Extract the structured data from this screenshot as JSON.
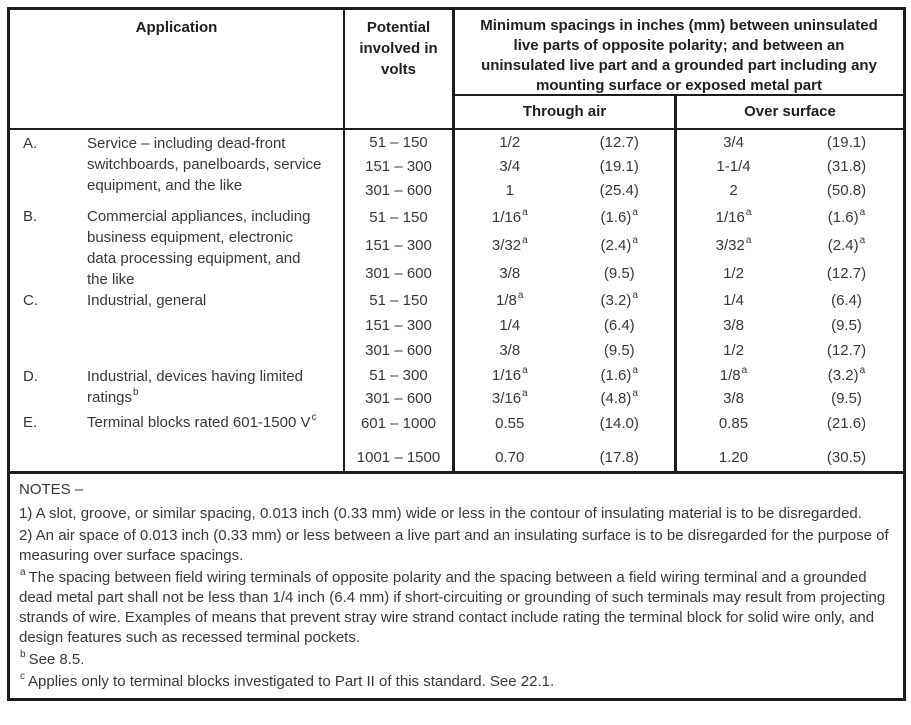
{
  "table": {
    "header": {
      "application": "Application",
      "potential": "Potential\ninvolved in\nvolts",
      "spacings": "Minimum spacings in inches (mm) between uninsulated\nlive parts of opposite polarity; and between an\nuninsulated live part and a grounded part including any\nmounting surface or exposed metal part",
      "through_air": "Through air",
      "over_surface": "Over surface"
    },
    "rows": [
      {
        "id": "a",
        "letter": "A.",
        "description": "Service – including dead-front\nswitchboards, panelboards, service\nequipment, and the like",
        "description_sup": "",
        "bands": [
          {
            "volts": "51 – 150",
            "air_in": "1/2",
            "air_in_sup": "",
            "air_mm": "(12.7)",
            "air_mm_sup": "",
            "surf_in": "3/4",
            "surf_in_sup": "",
            "surf_mm": "(19.1)",
            "surf_mm_sup": ""
          },
          {
            "volts": "151 – 300",
            "air_in": "3/4",
            "air_in_sup": "",
            "air_mm": "(19.1)",
            "air_mm_sup": "",
            "surf_in": "1-1/4",
            "surf_in_sup": "",
            "surf_mm": "(31.8)",
            "surf_mm_sup": ""
          },
          {
            "volts": "301 – 600",
            "air_in": "1",
            "air_in_sup": "",
            "air_mm": "(25.4)",
            "air_mm_sup": "",
            "surf_in": "2",
            "surf_in_sup": "",
            "surf_mm": "(50.8)",
            "surf_mm_sup": ""
          }
        ]
      },
      {
        "id": "b",
        "letter": "B.",
        "description": "Commercial appliances, including\nbusiness equipment, electronic\ndata processing equipment, and\nthe like",
        "description_sup": "",
        "bands": [
          {
            "volts": "51 – 150",
            "air_in": "1/16",
            "air_in_sup": "a",
            "air_mm": "(1.6)",
            "air_mm_sup": "a",
            "surf_in": "1/16",
            "surf_in_sup": "a",
            "surf_mm": "(1.6)",
            "surf_mm_sup": "a"
          },
          {
            "volts": "151 – 300",
            "air_in": "3/32",
            "air_in_sup": "a",
            "air_mm": "(2.4)",
            "air_mm_sup": "a",
            "surf_in": "3/32",
            "surf_in_sup": "a",
            "surf_mm": "(2.4)",
            "surf_mm_sup": "a"
          },
          {
            "volts": "301 – 600",
            "air_in": "3/8",
            "air_in_sup": "",
            "air_mm": "(9.5)",
            "air_mm_sup": "",
            "surf_in": "1/2",
            "surf_in_sup": "",
            "surf_mm": "(12.7)",
            "surf_mm_sup": ""
          }
        ]
      },
      {
        "id": "c",
        "letter": "C.",
        "description": "Industrial, general",
        "description_sup": "",
        "bands": [
          {
            "volts": "51 – 150",
            "air_in": "1/8",
            "air_in_sup": "a",
            "air_mm": "(3.2)",
            "air_mm_sup": "a",
            "surf_in": "1/4",
            "surf_in_sup": "",
            "surf_mm": "(6.4)",
            "surf_mm_sup": ""
          },
          {
            "volts": "151 – 300",
            "air_in": "1/4",
            "air_in_sup": "",
            "air_mm": "(6.4)",
            "air_mm_sup": "",
            "surf_in": "3/8",
            "surf_in_sup": "",
            "surf_mm": "(9.5)",
            "surf_mm_sup": ""
          },
          {
            "volts": "301 – 600",
            "air_in": "3/8",
            "air_in_sup": "",
            "air_mm": "(9.5)",
            "air_mm_sup": "",
            "surf_in": "1/2",
            "surf_in_sup": "",
            "surf_mm": "(12.7)",
            "surf_mm_sup": ""
          }
        ]
      },
      {
        "id": "d",
        "letter": "D.",
        "description": "Industrial, devices having limited\nratings",
        "description_sup": "b",
        "bands": [
          {
            "volts": "51 – 300",
            "air_in": "1/16",
            "air_in_sup": "a",
            "air_mm": "(1.6)",
            "air_mm_sup": "a",
            "surf_in": "1/8",
            "surf_in_sup": "a",
            "surf_mm": "(3.2)",
            "surf_mm_sup": "a"
          },
          {
            "volts": "301 – 600",
            "air_in": "3/16",
            "air_in_sup": "a",
            "air_mm": "(4.8)",
            "air_mm_sup": "a",
            "surf_in": "3/8",
            "surf_in_sup": "",
            "surf_mm": "(9.5)",
            "surf_mm_sup": ""
          }
        ]
      },
      {
        "id": "e",
        "letter": "E.",
        "description": "Terminal blocks rated 601-1500 V",
        "description_sup": "c",
        "bands": [
          {
            "volts": "601 – 1000",
            "air_in": "0.55",
            "air_in_sup": "",
            "air_mm": "(14.0)",
            "air_mm_sup": "",
            "surf_in": "0.85",
            "surf_in_sup": "",
            "surf_mm": "(21.6)",
            "surf_mm_sup": ""
          },
          {
            "volts": "1001 – 1500",
            "air_in": "0.70",
            "air_in_sup": "",
            "air_mm": "(17.8)",
            "air_mm_sup": "",
            "surf_in": "1.20",
            "surf_in_sup": "",
            "surf_mm": "(30.5)",
            "surf_mm_sup": ""
          }
        ]
      }
    ]
  },
  "notes": {
    "title": "NOTES –",
    "items": [
      {
        "sup": "",
        "text": "1) A slot, groove, or similar spacing, 0.013 inch (0.33 mm) wide or less in the contour of insulating material is to be disregarded."
      },
      {
        "sup": "",
        "text": "2) An air space of 0.013 inch (0.33 mm) or less between a live part and an insulating surface is to be disregarded for the purpose of measuring over surface spacings."
      },
      {
        "sup": "a",
        "text": "The spacing between field wiring terminals of opposite polarity and the spacing between a field wiring terminal and a grounded dead metal part shall not be less than 1/4 inch (6.4 mm) if short-circuiting or grounding of such terminals may result from projecting strands of wire. Examples of means that prevent stray wire strand contact include rating the terminal block for solid wire only, and design features such as recessed terminal pockets."
      },
      {
        "sup": "b",
        "text": "See 8.5."
      },
      {
        "sup": "c",
        "text": "Applies only to terminal blocks investigated to Part II of this standard. See 22.1."
      }
    ]
  }
}
